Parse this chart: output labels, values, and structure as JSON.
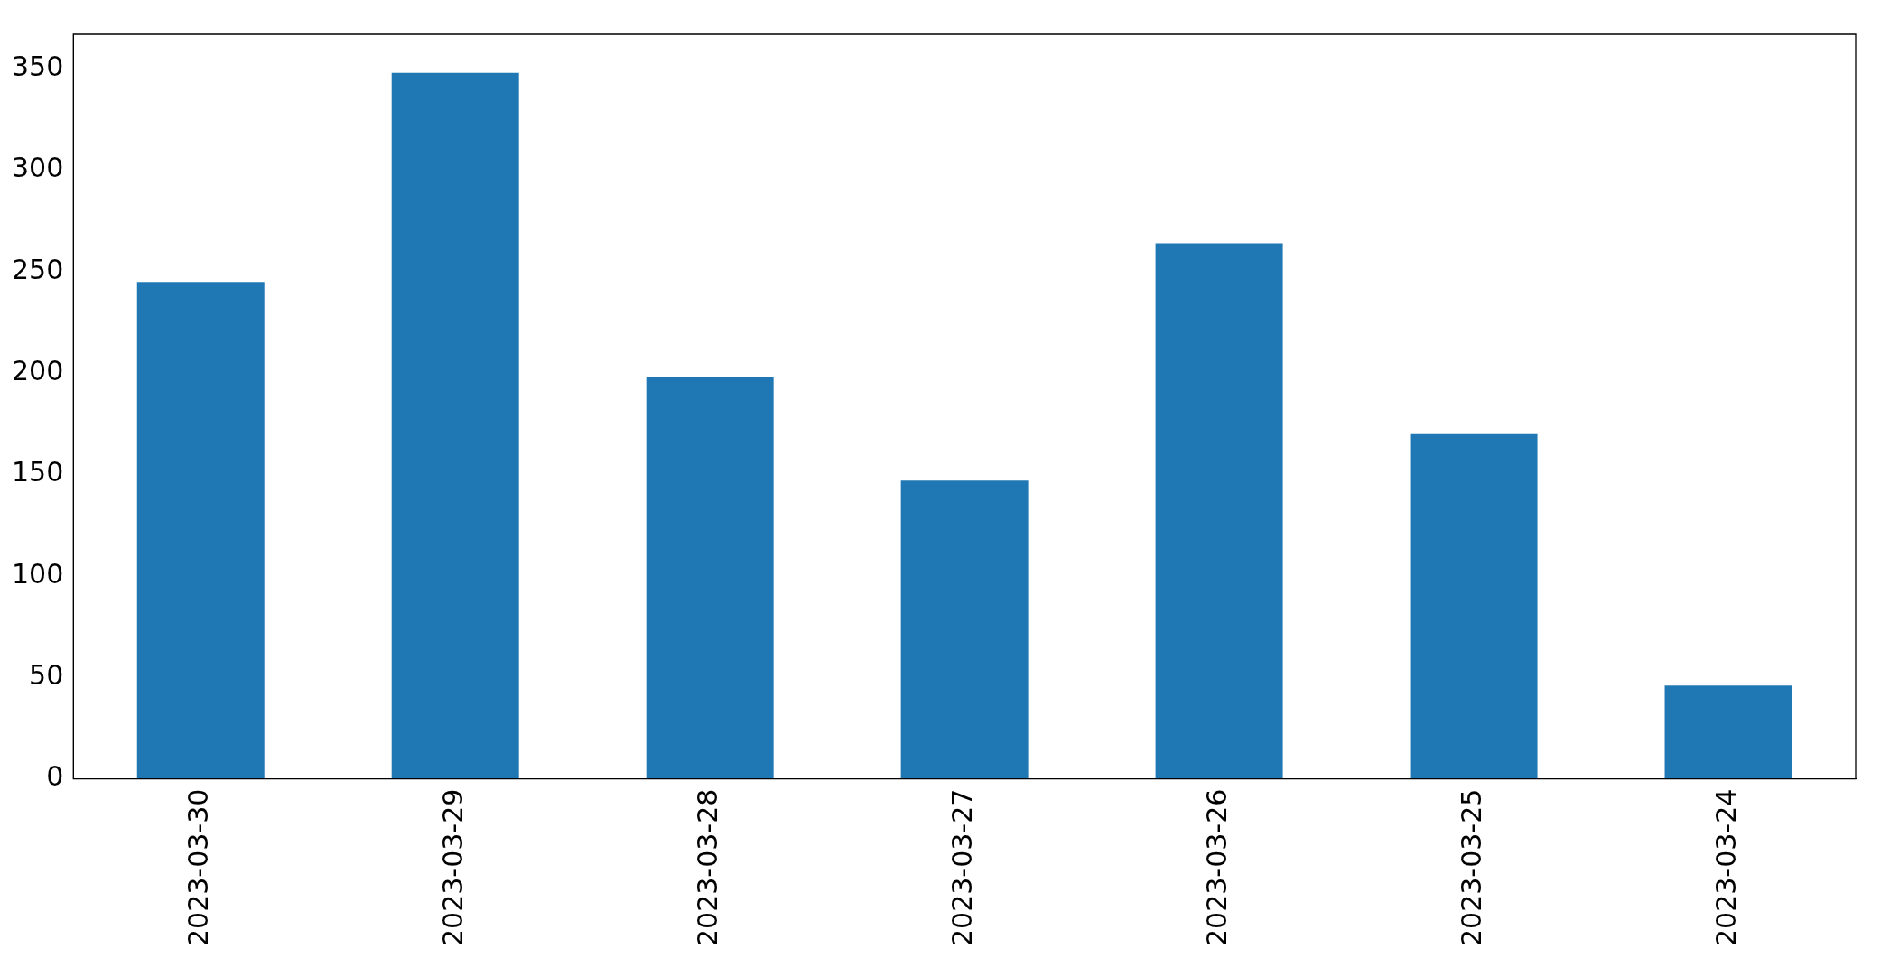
{
  "chart_data": {
    "type": "bar",
    "categories": [
      "2023-03-30",
      "2023-03-29",
      "2023-03-28",
      "2023-03-27",
      "2023-03-26",
      "2023-03-25",
      "2023-03-24"
    ],
    "values": [
      245,
      348,
      198,
      147,
      264,
      170,
      46
    ],
    "color": "#1f77b4",
    "ylim": [
      0,
      367
    ],
    "yticks": [
      0,
      50,
      100,
      150,
      200,
      250,
      300,
      350
    ],
    "grid": false,
    "legend": false
  }
}
